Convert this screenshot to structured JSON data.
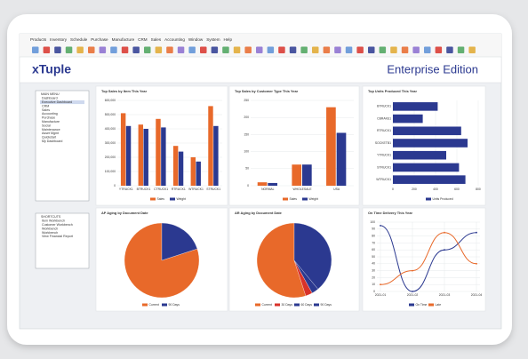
{
  "menu": [
    "Products",
    "Inventory",
    "Schedule",
    "Purchase",
    "Manufacture",
    "CRM",
    "Sales",
    "Accounting",
    "Window",
    "System",
    "Help"
  ],
  "header": {
    "logo": "xTuple",
    "edition": "Enterprise Edition"
  },
  "sidebar": {
    "main_menu": {
      "title": "MAIN MENU",
      "items": [
        "Dashboard",
        "Executive Dashboard",
        "CRM",
        "Sales",
        "Accounting",
        "Purchase",
        "Manufacture",
        "Social",
        "Maintenance",
        "Asset Mgmt",
        "Quickstart",
        "My Dashboard"
      ]
    },
    "shortcuts": {
      "title": "SHORTCUTS",
      "items": [
        "Item Workbench",
        "Customer Workbench",
        "Workbench",
        "Workbench",
        "View Financial Report"
      ]
    }
  },
  "chart_data": [
    {
      "type": "bar",
      "title": "Top Sales by Item This Year",
      "categories": [
        "YTRUCK1",
        "BTRUCK1",
        "CTRUCK1",
        "RTRUCK1",
        "WTRUCK1",
        "STRUCK1"
      ],
      "series": [
        {
          "name": "Sales",
          "color": "#e8692a",
          "values": [
            510000,
            430000,
            470000,
            280000,
            200000,
            560000
          ]
        },
        {
          "name": "Weight",
          "color": "#2b3990",
          "values": [
            420000,
            400000,
            410000,
            240000,
            170000,
            420000
          ]
        }
      ],
      "ylim": [
        0,
        600000
      ],
      "yticks": [
        0,
        {
          "value": 100000,
          "label": "100,000"
        },
        {
          "value": 200000,
          "label": "200,000"
        },
        {
          "value": 300000,
          "label": "300,000"
        },
        {
          "value": 400000,
          "label": "400,000"
        },
        {
          "value": 500000,
          "label": "500,000"
        },
        {
          "value": 600000,
          "label": "600,000"
        }
      ],
      "grid": true
    },
    {
      "type": "bar",
      "title": "Top Sales by Customer Type This Year",
      "categories": [
        "NORMAL",
        "WHOLESALE",
        "USA"
      ],
      "series": [
        {
          "name": "Sales",
          "color": "#e8692a",
          "values": [
            10,
            62,
            230
          ]
        },
        {
          "name": "Weight",
          "color": "#2b3990",
          "values": [
            8,
            62,
            155
          ]
        }
      ],
      "ylim": [
        0,
        250
      ],
      "yticks": [
        0,
        50,
        100,
        150,
        200,
        250
      ],
      "grid": true
    },
    {
      "type": "bar",
      "horizontal": true,
      "title": "Top Units Produced This Year",
      "categories": [
        "BTRUCK1",
        "CBRAKE1",
        "RTRUCK1",
        "SOCKETB1",
        "YTRUCK1",
        "STRUCK1",
        "WTRUCK1"
      ],
      "series": [
        {
          "name": "Units Produced",
          "color": "#2b3990",
          "values": [
            420,
            280,
            640,
            700,
            500,
            620,
            680
          ]
        }
      ],
      "xlim": [
        0,
        800
      ],
      "xticks": [
        0,
        200,
        400,
        600,
        800
      ],
      "grid": true
    },
    {
      "type": "pie",
      "title": "AP Aging by Document Date",
      "categories": [
        "Current",
        "90 Days"
      ],
      "values": [
        80,
        20
      ],
      "colors": [
        "#e8692a",
        "#2b3990"
      ]
    },
    {
      "type": "pie",
      "title": "AR Aging by Document Date",
      "categories": [
        "Current",
        "30 Days",
        "60 Days",
        "90 Days"
      ],
      "values": [
        55,
        3,
        3,
        39
      ],
      "colors": [
        "#e8692a",
        "#d8322a",
        "#2b3990",
        "#2b3990"
      ]
    },
    {
      "type": "line",
      "title": "On Time Delivery This Year",
      "categories": [
        "2021-01",
        "2021-02",
        "2021-03",
        "2021-04"
      ],
      "series": [
        {
          "name": "On Time",
          "color": "#2b3990",
          "values": [
            95,
            0,
            60,
            85
          ]
        },
        {
          "name": "Late",
          "color": "#e8692a",
          "values": [
            10,
            30,
            85,
            40
          ]
        }
      ],
      "ylim": [
        0,
        100
      ],
      "yticks": [
        0,
        10,
        20,
        30,
        40,
        50,
        60,
        70,
        80,
        90,
        100
      ],
      "grid": true
    }
  ]
}
